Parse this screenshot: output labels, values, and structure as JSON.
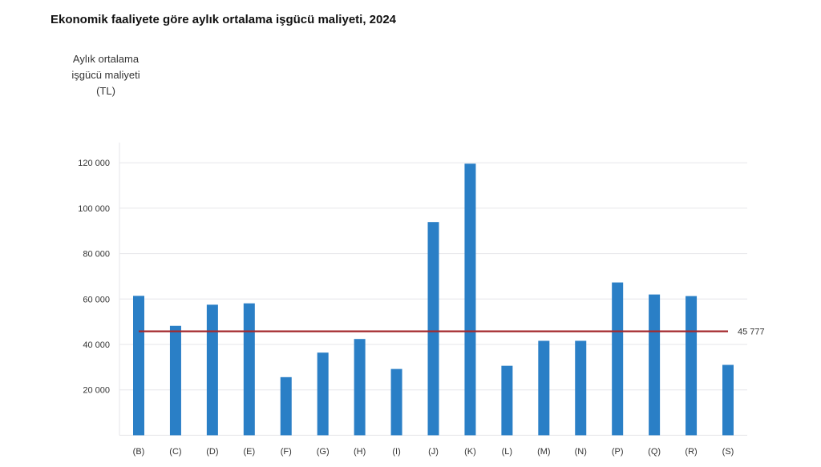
{
  "chart_data": {
    "type": "bar",
    "title": "Ekonomik faaliyete göre aylık ortalama işgücü maliyeti, 2024",
    "ylabel": "Aylık ortalama\nişgücü maliyeti\n(TL)",
    "xlabel": "",
    "categories": [
      "(B)",
      "(C)",
      "(D)",
      "(E)",
      "(F)",
      "(G)",
      "(H)",
      "(I)",
      "(J)",
      "(K)",
      "(L)",
      "(M)",
      "(N)",
      "(P)",
      "(Q)",
      "(R)",
      "(S)"
    ],
    "values": [
      61400,
      48200,
      57500,
      58100,
      25600,
      36400,
      42400,
      29200,
      93900,
      119600,
      30600,
      41600,
      41600,
      67300,
      62000,
      61300,
      31000
    ],
    "yticks": [
      20000,
      40000,
      60000,
      80000,
      100000,
      120000
    ],
    "ytick_labels": [
      "20 000",
      "40 000",
      "60 000",
      "80 000",
      "100 000",
      "120 000"
    ],
    "ylim": [
      0,
      129000
    ],
    "grid": true,
    "reference_line": {
      "value": 45777,
      "label": "45 777",
      "color": "#a3282c"
    },
    "bar_color": "#2a7fc6"
  }
}
